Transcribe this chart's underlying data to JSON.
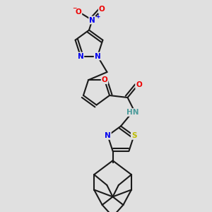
{
  "bg_color": "#e0e0e0",
  "bond_color": "#1a1a1a",
  "bond_width": 1.5,
  "dbo": 0.012,
  "atom_colors": {
    "N": "#0000ee",
    "O": "#ee0000",
    "S": "#bbbb00",
    "H": "#4a9a9a",
    "C": "#1a1a1a"
  },
  "font_size": 7.5
}
